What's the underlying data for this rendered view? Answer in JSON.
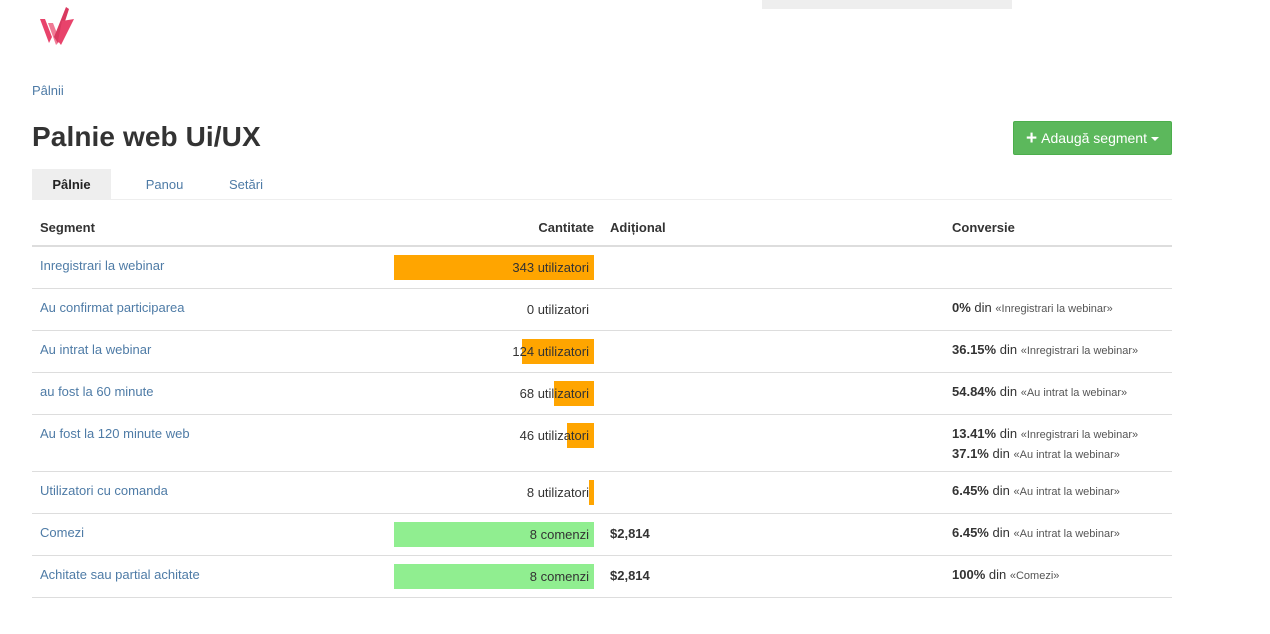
{
  "brand": {
    "logo_icon": "w-logo-icon",
    "logo_color": "#e8436b"
  },
  "breadcrumb": {
    "label": "Pâlnii"
  },
  "header": {
    "title": "Palnie web Ui/UX",
    "add_segment_label": "Adaugă segment",
    "add_segment_color": "#5cb85c"
  },
  "tabs": [
    {
      "label": "Pâlnie",
      "active": true
    },
    {
      "label": "Panou",
      "active": false
    },
    {
      "label": "Setări",
      "active": false
    }
  ],
  "table": {
    "columns": {
      "segment": "Segment",
      "quantity": "Cantitate",
      "additional": "Adițional",
      "conversion": "Conversie"
    },
    "rows": [
      {
        "segment": "Inregistrari la webinar",
        "quantity": "343 utilizatori",
        "count": 343,
        "bar": "orange",
        "bar_fraction": 1.0,
        "additional": "",
        "conversions": []
      },
      {
        "segment": "Au confirmat participarea",
        "quantity": "0 utilizatori",
        "count": 0,
        "bar": "orange",
        "bar_fraction": 0.0,
        "additional": "",
        "conversions": [
          {
            "percent": "0%",
            "word": "din",
            "ref": "«Inregistrari la webinar»"
          }
        ]
      },
      {
        "segment": "Au intrat la webinar",
        "quantity": "124 utilizatori",
        "count": 124,
        "bar": "orange",
        "bar_fraction": 0.3615,
        "additional": "",
        "conversions": [
          {
            "percent": "36.15%",
            "word": "din",
            "ref": "«Inregistrari la webinar»"
          }
        ]
      },
      {
        "segment": "au fost la 60 minute",
        "quantity": "68 utilizatori",
        "count": 68,
        "bar": "orange",
        "bar_fraction": 0.1983,
        "additional": "",
        "conversions": [
          {
            "percent": "54.84%",
            "word": "din",
            "ref": "«Au intrat la webinar»"
          }
        ]
      },
      {
        "segment": "Au fost la 120 minute web",
        "quantity": "46 utilizatori",
        "count": 46,
        "bar": "orange",
        "bar_fraction": 0.1341,
        "additional": "",
        "conversions": [
          {
            "percent": "13.41%",
            "word": "din",
            "ref": "«Inregistrari la webinar»"
          },
          {
            "percent": "37.1%",
            "word": "din",
            "ref": "«Au intrat la webinar»"
          }
        ]
      },
      {
        "segment": "Utilizatori cu comanda",
        "quantity": "8 utilizatori",
        "count": 8,
        "bar": "orange",
        "bar_fraction": 0.0233,
        "additional": "",
        "conversions": [
          {
            "percent": "6.45%",
            "word": "din",
            "ref": "«Au intrat la webinar»"
          }
        ]
      },
      {
        "segment": "Comezi",
        "quantity": "8 comenzi",
        "count": 8,
        "bar": "green",
        "bar_fraction": 1.0,
        "additional": "$2,814",
        "conversions": [
          {
            "percent": "6.45%",
            "word": "din",
            "ref": "«Au intrat la webinar»"
          }
        ]
      },
      {
        "segment": "Achitate sau partial achitate",
        "quantity": "8 comenzi",
        "count": 8,
        "bar": "green",
        "bar_fraction": 1.0,
        "additional": "$2,814",
        "conversions": [
          {
            "percent": "100%",
            "word": "din",
            "ref": "«Comezi»"
          }
        ]
      }
    ]
  }
}
